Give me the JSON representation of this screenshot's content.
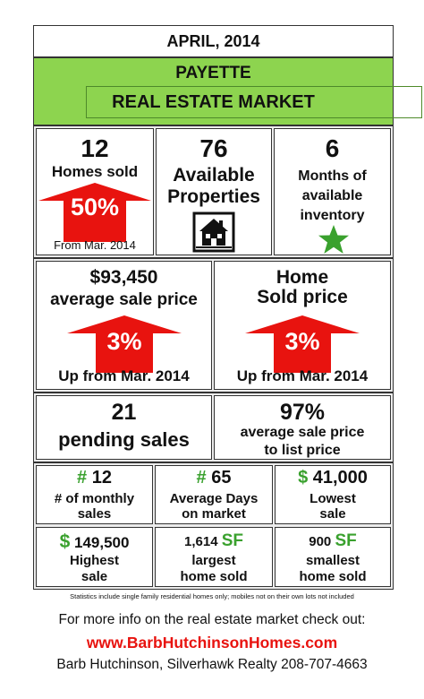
{
  "header": {
    "date": "APRIL, 2014",
    "city": "PAYETTE",
    "title": "REAL ESTATE MARKET"
  },
  "row1": {
    "homes_sold": {
      "number": "12",
      "label": "Homes sold",
      "change": "50%",
      "note": "From Mar. 2014"
    },
    "available": {
      "number": "76",
      "line1": "Available",
      "line2": "Properties"
    },
    "inventory": {
      "number": "6",
      "line1": "Months of",
      "line2": "available",
      "line3": "inventory"
    }
  },
  "row2": {
    "avg_price": {
      "value": "$93,450",
      "label": "average sale price",
      "change": "3%",
      "note": "Up from Mar. 2014"
    },
    "sold_price": {
      "line1": "Home",
      "line2": "Sold price",
      "change": "3%",
      "note": "Up from Mar. 2014"
    }
  },
  "row3": {
    "pending": {
      "number": "21",
      "label": "pending sales"
    },
    "ratio": {
      "value": "97%",
      "line1": "average sale price",
      "line2": "to list price"
    }
  },
  "grid": {
    "monthly": {
      "prefix": "#",
      "value": "12",
      "line1": "# of monthly",
      "line2": "sales"
    },
    "days": {
      "prefix": "#",
      "value": "65",
      "line1": "Average Days",
      "line2": "on market"
    },
    "lowest": {
      "prefix": "$",
      "value": "41,000",
      "line1": "Lowest",
      "line2": "sale"
    },
    "highest": {
      "prefix": "$",
      "value": "149,500",
      "line1": "Highest",
      "line2": "sale"
    },
    "largest": {
      "value": "1,614",
      "unit": "SF",
      "line1": "largest",
      "line2": "home sold"
    },
    "smallest": {
      "value": "900",
      "unit": "SF",
      "line1": "smallest",
      "line2": "home sold"
    }
  },
  "footer": {
    "disclaimer": "Statistics include single family residential homes only; mobiles not on their own lots not included",
    "more_info": "For more info on the real estate market check out:",
    "url": "www.BarbHutchinsonHomes.com",
    "contact": "Barb Hutchinson, Silverhawk Realty 208-707-4663"
  },
  "colors": {
    "green_banner": "#8dd44f",
    "arrow_red": "#e8130f",
    "star_green": "#3aa12e",
    "shade_gray": "#ececec"
  },
  "icons": {
    "house": "house-icon",
    "star": "star-icon",
    "up_arrow": "up-arrow-icon"
  }
}
